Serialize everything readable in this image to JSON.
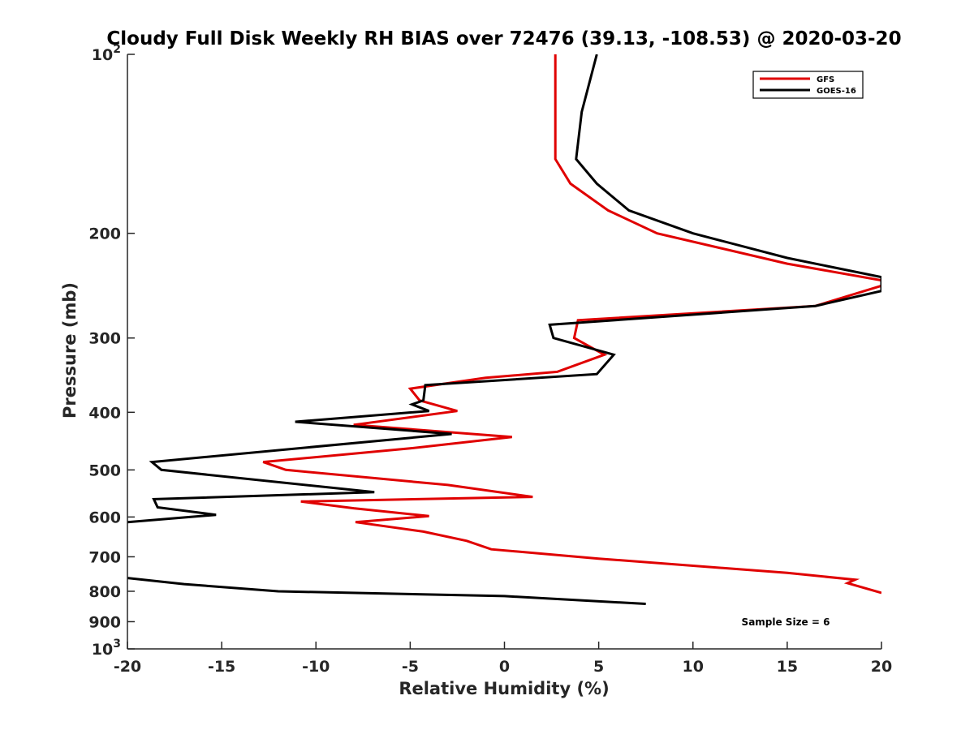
{
  "chart_data": {
    "type": "line",
    "title": "Cloudy Full Disk Weekly RH BIAS over 72476 (39.13, -108.53) @ 2020-03-20",
    "xlabel": "Relative Humidity (%)",
    "ylabel": "Pressure (mb)",
    "xlim": [
      -20,
      20
    ],
    "ylim": [
      100,
      1000
    ],
    "yscale": "log",
    "y_reversed": true,
    "xticks": [
      -20,
      -15,
      -10,
      -5,
      0,
      5,
      10,
      15,
      20
    ],
    "xtick_labels": [
      "-20",
      "-15",
      "-10",
      "-5",
      "0",
      "5",
      "10",
      "15",
      "20"
    ],
    "yticks": [
      100,
      200,
      300,
      400,
      500,
      600,
      700,
      800,
      900,
      1000
    ],
    "ytick_labels": [
      {
        "base": "10",
        "exp": "2"
      },
      {
        "base": "200"
      },
      {
        "base": "300"
      },
      {
        "base": "400"
      },
      {
        "base": "500"
      },
      {
        "base": "600"
      },
      {
        "base": "700"
      },
      {
        "base": "800"
      },
      {
        "base": "900"
      },
      {
        "base": "10",
        "exp": "3"
      }
    ],
    "legend_position": "top-right",
    "grid": false,
    "annotation": "Sample Size = 6",
    "series": [
      {
        "name": "GFS",
        "color": "#e00000",
        "points": [
          [
            2.7,
            100
          ],
          [
            2.7,
            150
          ],
          [
            3.5,
            165
          ],
          [
            5.5,
            183
          ],
          [
            8.1,
            200
          ],
          [
            15.0,
            225
          ],
          [
            20.0,
            240
          ],
          [
            20.0,
            245
          ],
          [
            16.5,
            265
          ],
          [
            3.9,
            280
          ],
          [
            3.7,
            300
          ],
          [
            5.3,
            320
          ],
          [
            2.8,
            342
          ],
          [
            -1.0,
            350
          ],
          [
            -5.0,
            365
          ],
          [
            -4.5,
            382
          ],
          [
            -2.5,
            398
          ],
          [
            -8.0,
            420
          ],
          [
            0.4,
            440
          ],
          [
            -5.0,
            460
          ],
          [
            -12.8,
            485
          ],
          [
            -11.6,
            500
          ],
          [
            -3.0,
            530
          ],
          [
            1.5,
            555
          ],
          [
            -10.8,
            565
          ],
          [
            -8.0,
            580
          ],
          [
            -4.0,
            598
          ],
          [
            -7.9,
            612
          ],
          [
            -4.3,
            635
          ],
          [
            -2.0,
            658
          ],
          [
            -0.7,
            680
          ],
          [
            5.0,
            705
          ],
          [
            15.0,
            745
          ],
          [
            18.6,
            765
          ],
          [
            18.2,
            775
          ],
          [
            20.0,
            805
          ]
        ]
      },
      {
        "name": "GOES-16",
        "color": "#000000",
        "points": [
          [
            4.9,
            100
          ],
          [
            4.1,
            125
          ],
          [
            3.8,
            150
          ],
          [
            4.9,
            165
          ],
          [
            6.6,
            183
          ],
          [
            10.0,
            200
          ],
          [
            15.0,
            220
          ],
          [
            20.0,
            237
          ],
          [
            20.0,
            250
          ],
          [
            16.5,
            265
          ],
          [
            2.4,
            285
          ],
          [
            2.6,
            300
          ],
          [
            5.8,
            320
          ],
          [
            4.9,
            345
          ],
          [
            -4.2,
            360
          ],
          [
            -4.3,
            382
          ],
          [
            -4.9,
            388
          ],
          [
            -4.0,
            398
          ],
          [
            -11.1,
            415
          ],
          [
            -2.8,
            435
          ],
          [
            -18.7,
            485
          ],
          [
            -18.2,
            500
          ],
          [
            -6.9,
            545
          ],
          [
            -18.6,
            560
          ],
          [
            -18.4,
            578
          ],
          [
            -15.3,
            595
          ],
          [
            -20.0,
            612
          ]
        ]
      },
      {
        "name": "GOES-16",
        "color": "#000000",
        "points": [
          [
            -20.0,
            760
          ],
          [
            -17.0,
            778
          ],
          [
            -12.0,
            800
          ],
          [
            0.0,
            815
          ],
          [
            7.5,
            840
          ]
        ]
      }
    ]
  }
}
